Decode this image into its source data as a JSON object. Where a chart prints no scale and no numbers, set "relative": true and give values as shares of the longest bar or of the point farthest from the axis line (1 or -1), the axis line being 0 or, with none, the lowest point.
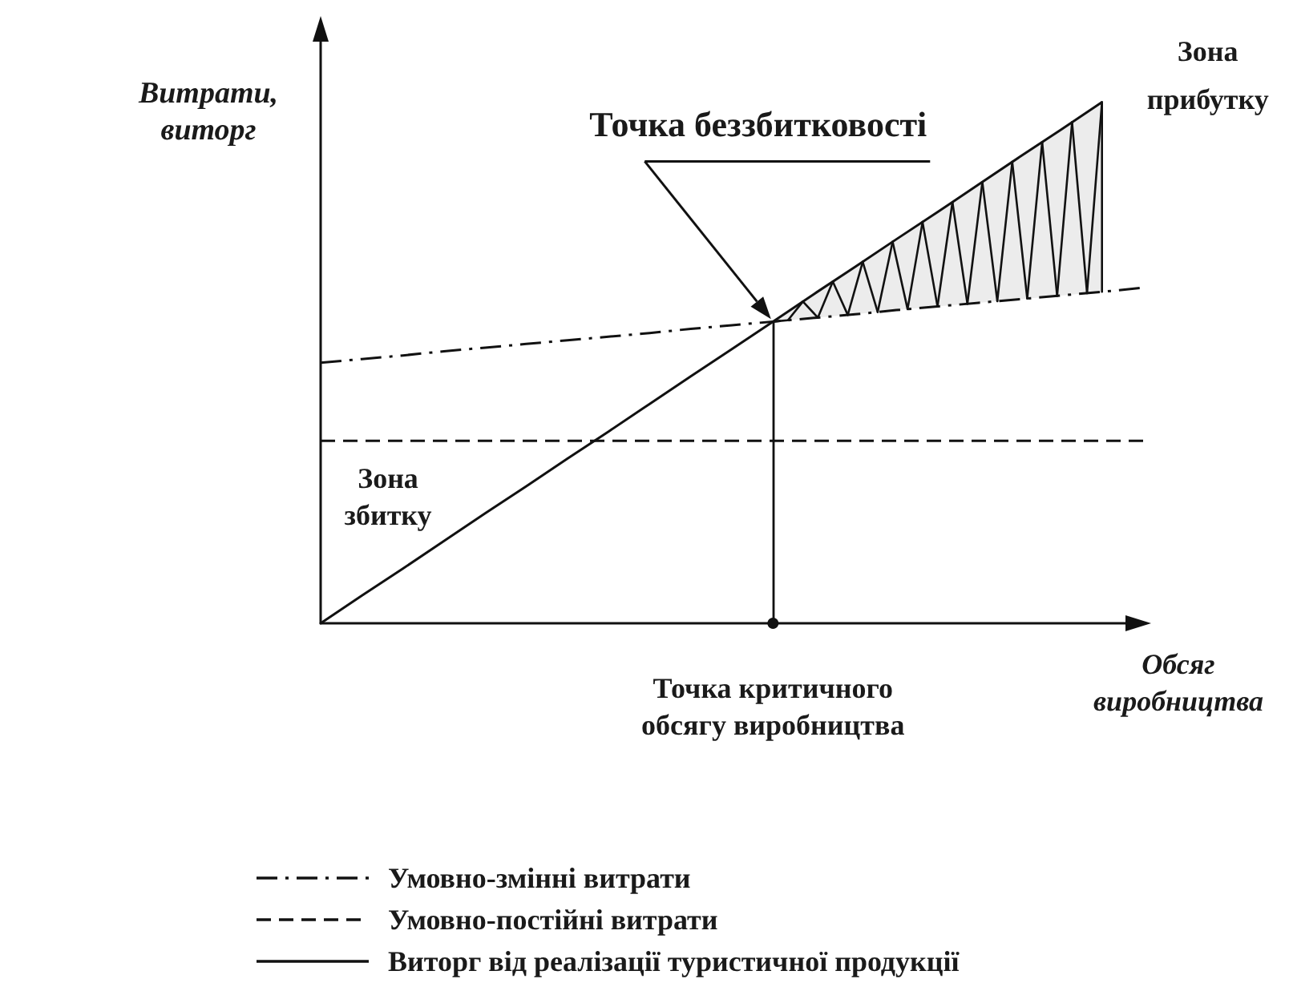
{
  "chart_data": {
    "type": "line",
    "relative": true,
    "ylabel": "Витрати, виторг",
    "xlabel": "Обсяг виробництва",
    "categories": [
      null,
      null,
      null,
      null,
      null,
      null,
      null,
      null,
      null,
      null,
      null,
      null,
      null,
      null,
      null,
      null,
      null,
      null,
      null,
      null,
      null
    ],
    "series": [
      {
        "name": "Умовно-змінні витрати",
        "color": "#111111",
        "line_style": "dashdot",
        "values": [
          0.5,
          0.507,
          0.514,
          0.522,
          0.529,
          0.536,
          0.543,
          0.55,
          0.557,
          0.565,
          0.572,
          0.579,
          0.586,
          0.593,
          0.601,
          0.608,
          0.615,
          0.622,
          0.629,
          0.636,
          0.644
        ]
      },
      {
        "name": "Умовно-постійні витрати",
        "color": "#111111",
        "line_style": "dashed",
        "values": [
          0.35,
          0.35,
          0.35,
          0.35,
          0.35,
          0.35,
          0.35,
          0.35,
          0.35,
          0.35,
          0.35,
          0.35,
          0.35,
          0.35,
          0.35,
          0.35,
          0.35,
          0.35,
          0.35,
          0.35,
          0.35
        ]
      },
      {
        "name": "Виторг від реалізації туристичної продукції",
        "color": "#111111",
        "line_style": "solid",
        "values": [
          0,
          0.053,
          0.105,
          0.158,
          0.211,
          0.263,
          0.316,
          0.368,
          0.421,
          0.474,
          0.526,
          0.579,
          0.632,
          0.684,
          0.737,
          0.789,
          0.842,
          0.895,
          0.947,
          1,
          null
        ],
        "lower": [
          null,
          null,
          null,
          null,
          null,
          null,
          null,
          null,
          null,
          null,
          null,
          0.579,
          0.586,
          0.593,
          0.601,
          0.608,
          0.615,
          0.622,
          0.629,
          0.636,
          null
        ],
        "upper": [
          null,
          null,
          null,
          null,
          null,
          null,
          null,
          null,
          null,
          null,
          null,
          0.579,
          0.632,
          0.684,
          0.737,
          0.789,
          0.842,
          0.895,
          0.947,
          1,
          null
        ]
      }
    ],
    "annotations": [
      "Точка беззбитковості",
      "Зона прибутку",
      "Зона збитку",
      "Точка критичного обсягу виробництва"
    ],
    "legend": "bottom left",
    "grid": false,
    "marker": "none"
  }
}
